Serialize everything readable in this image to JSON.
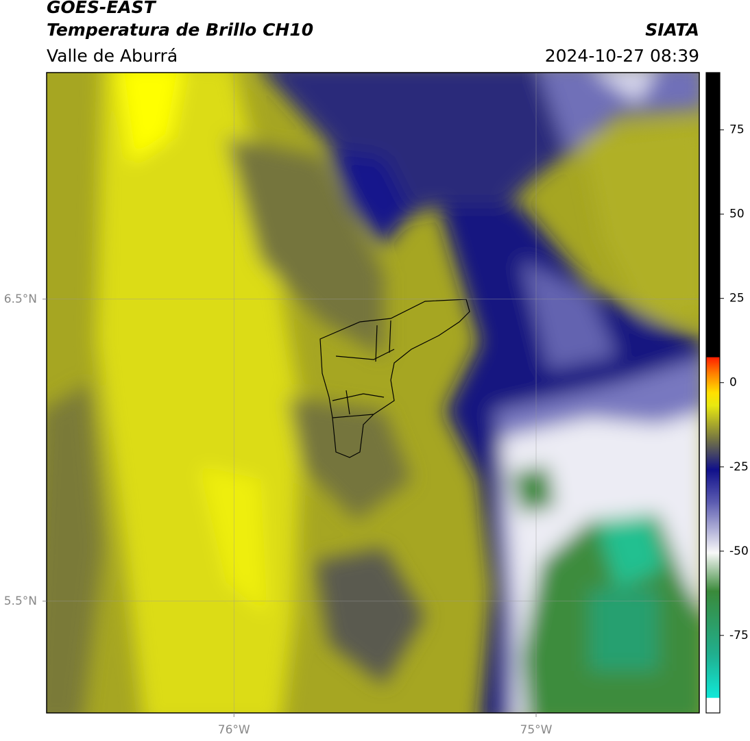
{
  "header": {
    "title": "GOES-EAST",
    "subtitle": "Temperatura de Brillo CH10",
    "region": "Valle de Aburrá",
    "source": "SIATA",
    "datetime": "2024-10-27 08:39"
  },
  "map": {
    "xlim": [
      -76.62,
      -74.46
    ],
    "ylim": [
      5.13,
      7.25
    ],
    "xticks": [
      {
        "value": -76,
        "label": "76°W"
      },
      {
        "value": -75,
        "label": "75°W"
      }
    ],
    "yticks": [
      {
        "value": 6.5,
        "label": "6.5°N"
      },
      {
        "value": 5.5,
        "label": "5.5°N"
      }
    ]
  },
  "colorbar": {
    "ylim": [
      -98,
      92
    ],
    "yticks": [
      75,
      50,
      25,
      0,
      -25,
      -50,
      -75
    ]
  }
}
